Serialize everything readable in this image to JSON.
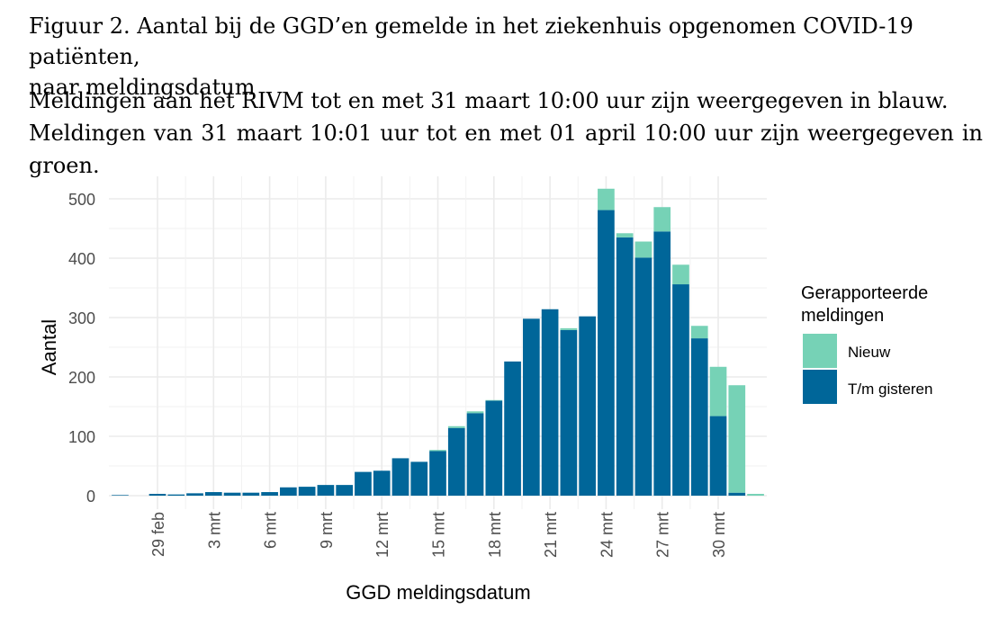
{
  "caption": {
    "line1": "Figuur 2. Aantal bij de GGD’en gemelde in het ziekenhuis opgenomen COVID-19 patiënten,",
    "line2": "naar meldingsdatum"
  },
  "description": {
    "line1": "Meldingen aan het RIVM tot en met 31 maart 10:00 uur zijn weergegeven in blauw.",
    "line2": "Meldingen van 31 maart 10:01 uur tot en met 01 april 10:00 uur zijn weergegeven in groen."
  },
  "chart_data": {
    "type": "bar",
    "stacked": true,
    "xlabel": "GGD meldingsdatum",
    "ylabel": "Aantal",
    "ylim": [
      0,
      540
    ],
    "yticks": [
      0,
      100,
      200,
      300,
      400,
      500
    ],
    "xticks": [
      {
        "date": "2020-02-29",
        "label": "29 feb"
      },
      {
        "date": "2020-03-03",
        "label": "3 mrt"
      },
      {
        "date": "2020-03-06",
        "label": "6 mrt"
      },
      {
        "date": "2020-03-09",
        "label": "9 mrt"
      },
      {
        "date": "2020-03-12",
        "label": "12 mrt"
      },
      {
        "date": "2020-03-15",
        "label": "15 mrt"
      },
      {
        "date": "2020-03-18",
        "label": "18 mrt"
      },
      {
        "date": "2020-03-21",
        "label": "21 mrt"
      },
      {
        "date": "2020-03-24",
        "label": "24 mrt"
      },
      {
        "date": "2020-03-27",
        "label": "27 mrt"
      },
      {
        "date": "2020-03-30",
        "label": "30 mrt"
      }
    ],
    "categories": [
      "2020-02-27",
      "2020-02-28",
      "2020-02-29",
      "2020-03-01",
      "2020-03-02",
      "2020-03-03",
      "2020-03-04",
      "2020-03-05",
      "2020-03-06",
      "2020-03-07",
      "2020-03-08",
      "2020-03-09",
      "2020-03-10",
      "2020-03-11",
      "2020-03-12",
      "2020-03-13",
      "2020-03-14",
      "2020-03-15",
      "2020-03-16",
      "2020-03-17",
      "2020-03-18",
      "2020-03-19",
      "2020-03-20",
      "2020-03-21",
      "2020-03-22",
      "2020-03-23",
      "2020-03-24",
      "2020-03-25",
      "2020-03-26",
      "2020-03-27",
      "2020-03-28",
      "2020-03-29",
      "2020-03-30",
      "2020-03-31",
      "2020-04-01"
    ],
    "series": [
      {
        "name": "T/m gisteren",
        "color": "#006699",
        "values": [
          1,
          0,
          3,
          2,
          4,
          6,
          5,
          5,
          6,
          14,
          15,
          18,
          18,
          40,
          42,
          63,
          57,
          75,
          114,
          139,
          160,
          226,
          298,
          314,
          279,
          302,
          481,
          435,
          401,
          445,
          356,
          265,
          134,
          5,
          0
        ]
      },
      {
        "name": "Nieuw",
        "color": "#76D2B6",
        "values": [
          0,
          0,
          0,
          0,
          0,
          0,
          0,
          0,
          0,
          0,
          0,
          0,
          0,
          0,
          0,
          0,
          0,
          2,
          3,
          3,
          1,
          0,
          0,
          0,
          3,
          0,
          36,
          7,
          27,
          41,
          33,
          21,
          83,
          181,
          3
        ]
      }
    ],
    "legend": {
      "title_line1": "Gerapporteerde",
      "title_line2": "meldingen",
      "position": "right"
    },
    "grid": true
  }
}
